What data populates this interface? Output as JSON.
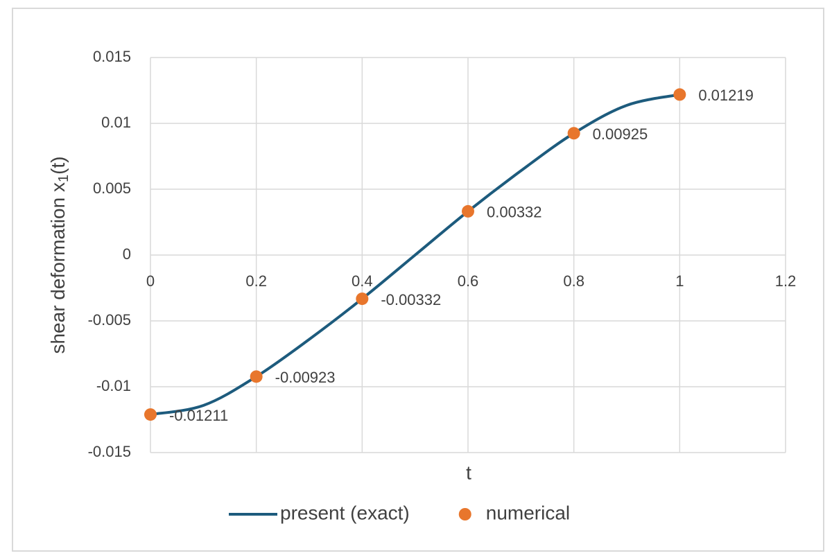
{
  "chart_data": {
    "type": "line",
    "x_label": "t",
    "y_label": {
      "text": "shear deformation  x",
      "subscript": "1",
      "suffix": "(t)"
    },
    "xlim": [
      0,
      1.2
    ],
    "xticks": [
      0,
      0.2,
      0.4,
      0.6,
      0.8,
      1,
      1.2
    ],
    "ylim": [
      -0.015,
      0.015
    ],
    "yticks": [
      -0.015,
      -0.01,
      -0.005,
      0,
      0.005,
      0.01,
      0.015
    ],
    "grid": true,
    "legend": "bottom",
    "series": [
      {
        "name": "present (exact)",
        "type": "line",
        "color": "#1d5b7d",
        "x": [
          0,
          0.1,
          0.2,
          0.3,
          0.4,
          0.5,
          0.6,
          0.7,
          0.8,
          0.9,
          1
        ],
        "values": [
          -0.01211,
          -0.01142,
          -0.00923,
          -0.0064,
          -0.00332,
          0,
          0.00332,
          0.0064,
          0.00925,
          0.01137,
          0.01219
        ]
      },
      {
        "name": "numerical",
        "type": "scatter",
        "color": "#e8762c",
        "x": [
          0,
          0.2,
          0.4,
          0.6,
          0.8,
          1
        ],
        "values": [
          -0.01211,
          -0.00923,
          -0.00332,
          0.00332,
          0.00925,
          0.01219
        ]
      }
    ]
  }
}
